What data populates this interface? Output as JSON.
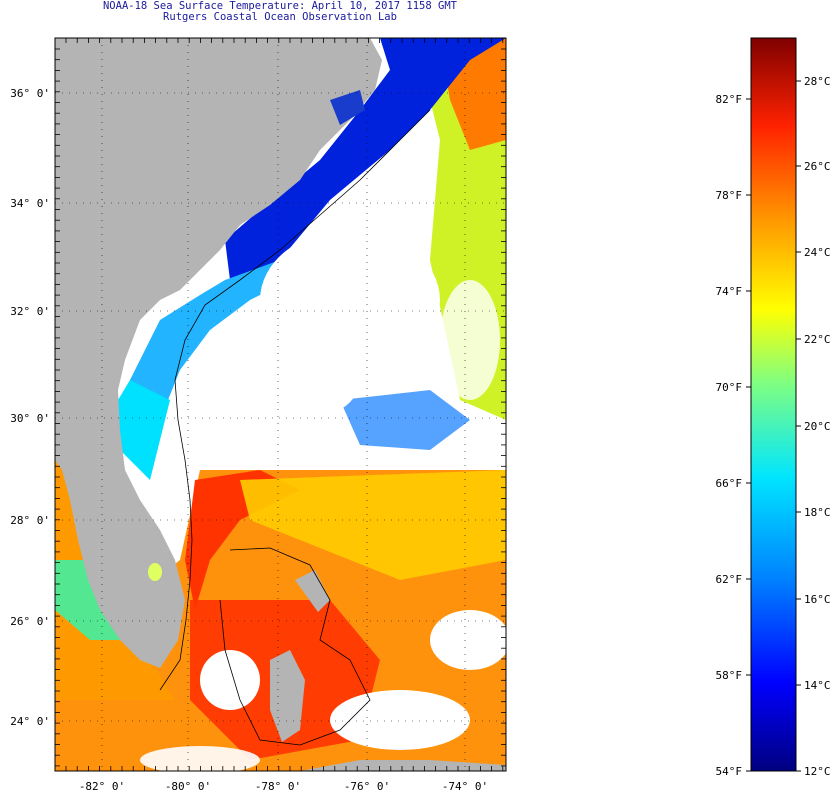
{
  "title": {
    "line1": "NOAA-18 Sea Surface Temperature:  April 10, 2017 1158 GMT",
    "line2": "Rutgers Coastal Ocean Observation Lab"
  },
  "map": {
    "lat_labels": [
      "36° 0'",
      "34° 0'",
      "32° 0'",
      "30° 0'",
      "28° 0'",
      "26° 0'",
      "24° 0'"
    ],
    "lon_labels": [
      "-82° 0'",
      "-80° 0'",
      "-78° 0'",
      "-76° 0'",
      "-74° 0'"
    ],
    "land_color": "#b4b4b4",
    "cloud_color": "#ffffff"
  },
  "colorbar": {
    "f_labels": [
      "82°F",
      "78°F",
      "74°F",
      "70°F",
      "66°F",
      "62°F",
      "58°F",
      "54°F"
    ],
    "c_labels": [
      "28°C",
      "26°C",
      "24°C",
      "22°C",
      "20°C",
      "18°C",
      "16°C",
      "14°C",
      "12°C"
    ],
    "min_c": 12,
    "max_c": 29.5,
    "colors": [
      "#00007f",
      "#0000ff",
      "#0080ff",
      "#00e5ff",
      "#80ff80",
      "#ffff00",
      "#ff9900",
      "#ff2200",
      "#7f0000"
    ]
  }
}
